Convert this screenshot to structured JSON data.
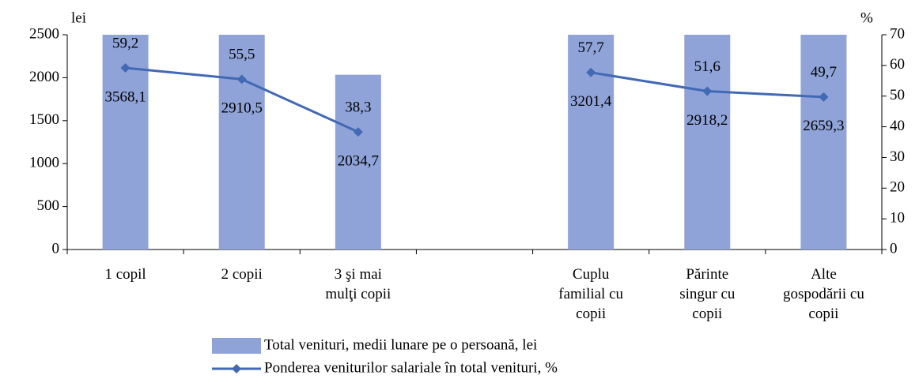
{
  "chart_data": {
    "type": "bar",
    "categories": [
      "1 copil",
      "2 copii",
      "3 şi mai\nmulţi copii",
      null,
      "Cuplu\nfamilial cu\ncopii",
      "Părinte\nsingur cu\ncopii",
      "Alte\ngospodării cu\ncopii"
    ],
    "y_label": "lei",
    "y2_label": "%",
    "ylim": [
      0,
      2500
    ],
    "yticks": [
      0,
      500,
      1000,
      1500,
      2000,
      2500
    ],
    "y2lim": [
      0,
      70
    ],
    "y2ticks": [
      0,
      10,
      20,
      30,
      40,
      50,
      60,
      70
    ],
    "series": [
      {
        "name": "Total venituri, medii lunare pe o persoană, lei",
        "type": "bar",
        "color": "#8fa3d9",
        "values": [
          3568.1,
          2910.5,
          2034.7,
          null,
          3201.4,
          2918.2,
          2659.3
        ],
        "value_labels": [
          "3568,1",
          "2910,5",
          "2034,7",
          null,
          "3201,4",
          "2918,2",
          "2659,3"
        ]
      },
      {
        "name": "Ponderea veniturilor salariale în total venituri, %",
        "type": "line",
        "axis": "y2",
        "color": "#4169b4",
        "values": [
          59.2,
          55.5,
          38.3,
          null,
          57.7,
          51.6,
          49.7
        ],
        "value_labels": [
          "59,2",
          "55,5",
          "38,3",
          null,
          "57,7",
          "51,6",
          "49,7"
        ]
      }
    ]
  }
}
